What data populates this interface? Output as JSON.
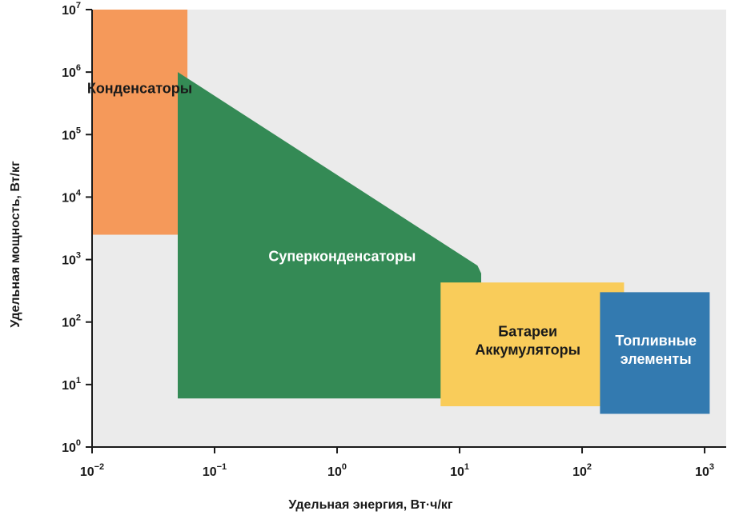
{
  "chart_data": {
    "type": "area",
    "title": "",
    "xlabel": "Удельная энергия, Вт·ч/кг",
    "ylabel": "Удельная мощность, Вт/кг",
    "x_scale": "log",
    "y_scale": "log",
    "xlim": [
      0.01,
      1500
    ],
    "ylim": [
      1,
      10000000
    ],
    "grid": false,
    "x_ticks": [
      {
        "value": 0.01,
        "base": "10",
        "exp": "−2"
      },
      {
        "value": 0.1,
        "base": "10",
        "exp": "−1"
      },
      {
        "value": 1,
        "base": "10",
        "exp": "0"
      },
      {
        "value": 10,
        "base": "10",
        "exp": "1"
      },
      {
        "value": 100,
        "base": "10",
        "exp": "2"
      },
      {
        "value": 1000,
        "base": "10",
        "exp": "3"
      }
    ],
    "y_ticks": [
      {
        "value": 1,
        "base": "10",
        "exp": "0"
      },
      {
        "value": 10,
        "base": "10",
        "exp": "1"
      },
      {
        "value": 100,
        "base": "10",
        "exp": "2"
      },
      {
        "value": 1000,
        "base": "10",
        "exp": "3"
      },
      {
        "value": 10000,
        "base": "10",
        "exp": "4"
      },
      {
        "value": 100000,
        "base": "10",
        "exp": "5"
      },
      {
        "value": 1000000,
        "base": "10",
        "exp": "6"
      },
      {
        "value": 10000000,
        "base": "10",
        "exp": "7"
      }
    ],
    "regions": [
      {
        "name": "capacitors",
        "lines": [
          "Конденсаторы"
        ],
        "color": "#f5995a",
        "text_color": "#1a1a1a",
        "points": [
          [
            0.01,
            2500
          ],
          [
            0.01,
            10000000
          ],
          [
            0.06,
            10000000
          ],
          [
            0.06,
            2500
          ]
        ]
      },
      {
        "name": "supercapacitors",
        "lines": [
          "Суперконденсаторы"
        ],
        "color": "#348a55",
        "text_color": "#ffffff",
        "points": [
          [
            0.05,
            6
          ],
          [
            0.05,
            1000000
          ],
          [
            14,
            800
          ],
          [
            15,
            600
          ],
          [
            15,
            6
          ]
        ]
      },
      {
        "name": "batteries",
        "lines": [
          "Батареи",
          "Аккумуляторы"
        ],
        "color": "#f9cc5a",
        "text_color": "#1a1a1a",
        "points": [
          [
            7,
            4.5
          ],
          [
            7,
            430
          ],
          [
            220,
            430
          ],
          [
            220,
            4.5
          ]
        ]
      },
      {
        "name": "fuel-cells",
        "lines": [
          "Топливные",
          "элементы"
        ],
        "color": "#337ab0",
        "text_color": "#ffffff",
        "points": [
          [
            140,
            3.4
          ],
          [
            140,
            300
          ],
          [
            1100,
            300
          ],
          [
            1100,
            3.4
          ]
        ]
      }
    ]
  }
}
